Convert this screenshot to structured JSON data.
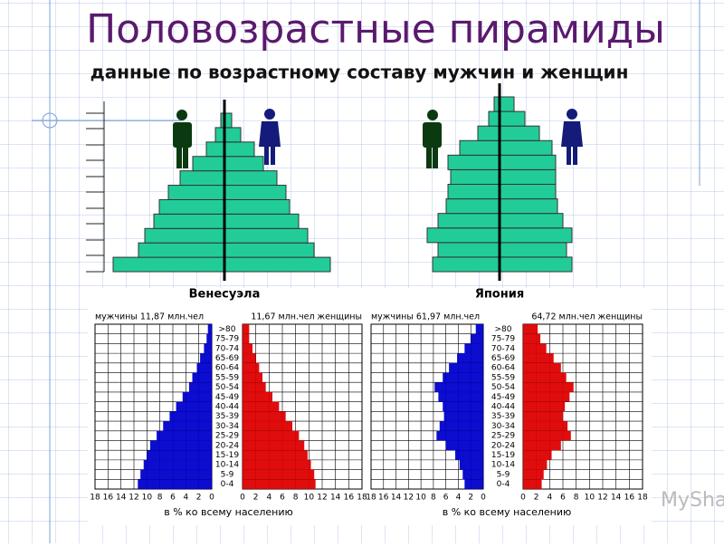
{
  "title": "Половозрастные пирамиды",
  "subtitle": "данные по возрастному составу мужчин и женщин",
  "watermark": "MyShared",
  "chart_data": [
    {
      "type": "pyramid",
      "caption": "Венесуэла",
      "categories": [
        null,
        null,
        null,
        null,
        null,
        null,
        null,
        null,
        null,
        null,
        null
      ],
      "series": [
        {
          "name": null,
          "color": "#22cc99",
          "values": [
            123,
            95,
            88,
            78,
            72,
            62,
            49,
            35,
            20,
            10,
            4
          ]
        },
        {
          "name": null,
          "color": "#22cc99",
          "values": [
            117,
            99,
            92,
            82,
            72,
            68,
            58,
            43,
            33,
            18,
            8
          ]
        }
      ]
    },
    {
      "type": "pyramid",
      "caption": "Япония",
      "categories": [
        null,
        null,
        null,
        null,
        null,
        null,
        null,
        null,
        null,
        null,
        null,
        null
      ],
      "series": [
        {
          "name": null,
          "color": "#22cc99",
          "values": [
            74,
            68,
            80,
            68,
            59,
            57,
            54,
            57,
            44,
            24,
            12,
            6
          ]
        },
        {
          "name": null,
          "color": "#22cc99",
          "values": [
            80,
            74,
            80,
            70,
            64,
            62,
            62,
            62,
            58,
            44,
            28,
            16
          ]
        }
      ]
    },
    {
      "type": "pyramid",
      "xlabel": "в % ко всему населению",
      "categories": [
        "0-4",
        "5-9",
        "10-14",
        "15-19",
        "20-24",
        "25-29",
        "30-34",
        "35-39",
        "40-44",
        "45-49",
        "50-54",
        "55-59",
        "60-64",
        "65-69",
        "70-74",
        "75-79",
        ">80"
      ],
      "series": [
        {
          "name": "мужчины 11,87 млн.чел",
          "color": "#0000cc",
          "values": [
            11.4,
            11,
            10.5,
            10,
            9.5,
            8.5,
            7.5,
            6.5,
            5.5,
            4.5,
            3.5,
            3,
            2.3,
            1.8,
            1.2,
            0.8,
            0.6
          ]
        },
        {
          "name": "11,67 млн.чел женщины",
          "color": "#dd0000",
          "values": [
            11,
            10.8,
            10.3,
            9.8,
            9.3,
            8.5,
            7.5,
            6.5,
            5.5,
            4.5,
            3.5,
            3,
            2.5,
            2,
            1.5,
            1,
            1
          ]
        }
      ],
      "xlim": [
        0,
        18
      ],
      "xticks": [
        0,
        2,
        4,
        6,
        8,
        10,
        12,
        14,
        16,
        18
      ]
    },
    {
      "type": "pyramid",
      "xlabel": "в % ко всему населению",
      "categories": [
        "0-4",
        "5-9",
        "10-14",
        "15-19",
        "20-24",
        "25-29",
        "30-34",
        "35-39",
        "40-44",
        "45-49",
        "50-54",
        "55-59",
        "60-64",
        "65-69",
        "70-74",
        "75-79",
        ">80"
      ],
      "series": [
        {
          "name": "мужчины 61,97 млн.чел",
          "color": "#0000cc",
          "values": [
            3,
            3.3,
            3.8,
            4.5,
            6,
            7.5,
            7,
            6.3,
            6.5,
            7.2,
            7.8,
            6.5,
            5.5,
            4.2,
            3,
            2,
            1.2
          ]
        },
        {
          "name": "64,72 млн.чел женщины",
          "color": "#dd0000",
          "values": [
            2.8,
            3.1,
            3.6,
            4.3,
            5.7,
            7.2,
            6.7,
            6,
            6.3,
            7,
            7.6,
            6.5,
            5.7,
            4.6,
            3.5,
            2.6,
            2.2
          ]
        }
      ],
      "xlim": [
        0,
        18
      ],
      "xticks": [
        0,
        2,
        4,
        6,
        8,
        10,
        12,
        14,
        16,
        18
      ]
    }
  ]
}
